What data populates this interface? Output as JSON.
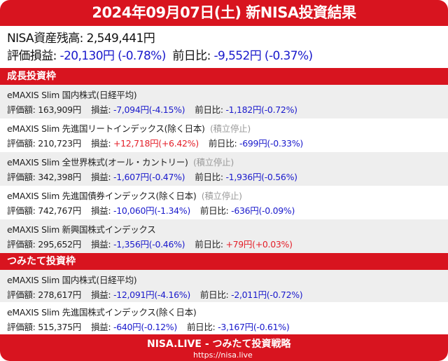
{
  "title": "2024年09月07日(土) 新NISA投資結果",
  "summary": {
    "balance_label": "NISA資産残高: ",
    "balance": "2,549,441円",
    "pl_label": "評価損益: ",
    "pl": "-20,130円 (-0.78%)",
    "day_label": "前日比: ",
    "day": "-9,552円 (-0.37%)"
  },
  "labels": {
    "value": "評価額: ",
    "pl": "損益: ",
    "day": "前日比: "
  },
  "sections": [
    {
      "title": "成長投資枠",
      "funds": [
        {
          "name": "eMAXIS Slim 国内株式(日経平均)",
          "note": "",
          "value": "163,909円",
          "pl": "-7,094円(-4.15%)",
          "pl_sign": "neg",
          "day": "-1,182円(-0.72%)",
          "day_sign": "neg"
        },
        {
          "name": "eMAXIS Slim 先進国リートインデックス(除く日本)",
          "note": "(積立停止)",
          "value": "210,723円",
          "pl": "+12,718円(+6.42%)",
          "pl_sign": "pos",
          "day": "-699円(-0.33%)",
          "day_sign": "neg"
        },
        {
          "name": "eMAXIS Slim 全世界株式(オール・カントリー)",
          "note": "(積立停止)",
          "value": "342,398円",
          "pl": "-1,607円(-0.47%)",
          "pl_sign": "neg",
          "day": "-1,936円(-0.56%)",
          "day_sign": "neg"
        },
        {
          "name": "eMAXIS Slim 先進国債券インデックス(除く日本)",
          "note": "(積立停止)",
          "value": "742,767円",
          "pl": "-10,060円(-1.34%)",
          "pl_sign": "neg",
          "day": "-636円(-0.09%)",
          "day_sign": "neg"
        },
        {
          "name": "eMAXIS Slim 新興国株式インデックス",
          "note": "",
          "value": "295,652円",
          "pl": "-1,356円(-0.46%)",
          "pl_sign": "neg",
          "day": "+79円(+0.03%)",
          "day_sign": "pos"
        }
      ]
    },
    {
      "title": "つみたて投資枠",
      "funds": [
        {
          "name": "eMAXIS Slim 国内株式(日経平均)",
          "note": "",
          "value": "278,617円",
          "pl": "-12,091円(-4.16%)",
          "pl_sign": "neg",
          "day": "-2,011円(-0.72%)",
          "day_sign": "neg"
        },
        {
          "name": "eMAXIS Slim 先進国株式インデックス(除く日本)",
          "note": "",
          "value": "515,375円",
          "pl": "-640円(-0.12%)",
          "pl_sign": "neg",
          "day": "-3,167円(-0.61%)",
          "day_sign": "neg"
        }
      ]
    }
  ],
  "footer": {
    "brand": "NISA.LIVE - つみたて投資戦略",
    "url": "https://nisa.live"
  },
  "colors": {
    "accent": "#d8141f",
    "negative": "#1a1acc",
    "positive": "#e4202a"
  }
}
